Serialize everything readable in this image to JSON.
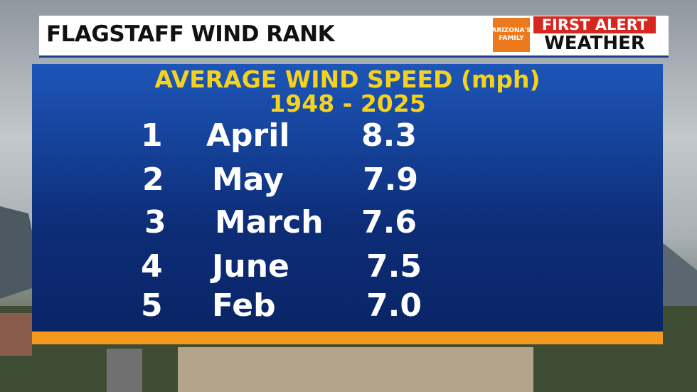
{
  "header": {
    "title": "FLAGSTAFF WIND RANK",
    "logo": {
      "network": "ARIZONA'S FAMILY",
      "line1": "FIRST ALERT",
      "line2": "WEATHER"
    }
  },
  "panel": {
    "title": "AVERAGE WIND SPEED (mph)",
    "subtitle": "1948 - 2025",
    "rows": [
      [
        "1",
        "April",
        "8.3"
      ],
      [
        "2",
        "May",
        "7.9"
      ],
      [
        "3",
        "March",
        "7.6"
      ],
      [
        "4",
        "June",
        "7.5"
      ],
      [
        "5",
        "Feb",
        "7.0"
      ]
    ]
  }
}
